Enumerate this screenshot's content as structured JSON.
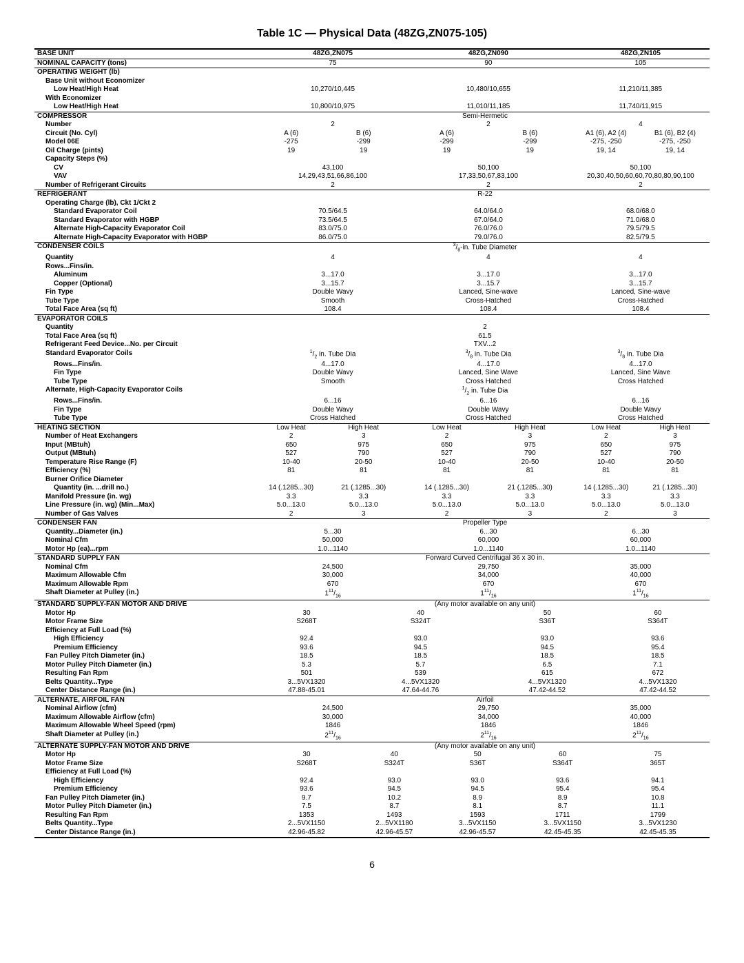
{
  "title": "Table 1C — Physical Data (48ZG,ZN075-105)",
  "page_number": "6",
  "cols": {
    "c1": "48ZG,ZN075",
    "c2": "48ZG,ZN090",
    "c3": "48ZG,ZN105"
  },
  "base_unit": {
    "label": "BASE UNIT",
    "nominal_capacity": {
      "label": "NOMINAL CAPACITY (tons)",
      "v": [
        "75",
        "90",
        "105"
      ]
    }
  },
  "operating_weight": {
    "label": "OPERATING WEIGHT (lb)",
    "base_no_econ": "Base Unit without Economizer",
    "low_high1": {
      "label": "Low Heat/High Heat",
      "v": [
        "10,270/10,445",
        "10,480/10,655",
        "11,210/11,385"
      ]
    },
    "with_econ": "With Economizer",
    "low_high2": {
      "label": "Low Heat/High Heat",
      "v": [
        "10,800/10,975",
        "11,010/11,185",
        "11,740/11,915"
      ]
    }
  },
  "compressor": {
    "label": "COMPRESSOR",
    "type": "Semi-Hermetic",
    "number": {
      "label": "Number",
      "v": [
        "2",
        "2",
        "4"
      ]
    },
    "circuit": {
      "label": "Circuit (No. Cyl)",
      "a": [
        "A (6)",
        "A (6)",
        "A1 (6), A2 (4)"
      ],
      "b": [
        "B (6)",
        "B (6)",
        "B1 (6), B2 (4)"
      ]
    },
    "model": {
      "label": "Model 06E",
      "a": [
        "-275",
        "-299",
        "-275, -250"
      ],
      "b": [
        "-299",
        "-299",
        "-275, -250"
      ]
    },
    "oil": {
      "label": "Oil Charge (pints)",
      "a": [
        "19",
        "19",
        "19, 14"
      ],
      "b": [
        "19",
        "19",
        "19, 14"
      ]
    },
    "cap_steps": "Capacity Steps (%)",
    "cv": {
      "label": "CV",
      "v": [
        "43,100",
        "50,100",
        "50,100"
      ]
    },
    "vav": {
      "label": "VAV",
      "v": [
        "14,29,43,51,66,86,100",
        "17,33,50,67,83,100",
        "20,30,40,50,60,60,70,80,80,90,100"
      ]
    },
    "circuits": {
      "label": "Number of Refrigerant Circuits",
      "v": [
        "2",
        "2",
        "2"
      ]
    }
  },
  "refrigerant": {
    "label": "REFRIGERANT",
    "type": "R-22",
    "op_charge": "Operating Charge (lb), Ckt 1/Ckt 2",
    "std_evap": {
      "label": "Standard Evaporator Coil",
      "v": [
        "70.5/64.5",
        "64.0/64.0",
        "68.0/68.0"
      ]
    },
    "std_evap_hgbp": {
      "label": "Standard Evaporator with HGBP",
      "v": [
        "73.5/64.5",
        "67.0/64.0",
        "71.0/68.0"
      ]
    },
    "alt_evap": {
      "label": "Alternate High-Capacity Evaporator Coil",
      "v": [
        "83.0/75.0",
        "76.0/76.0",
        "79.5/79.5"
      ]
    },
    "alt_evap_hgbp": {
      "label": "Alternate High-Capacity Evaporator with HGBP",
      "v": [
        "86.0/75.0",
        "79.0/76.0",
        "82.5/79.5"
      ]
    }
  },
  "condenser": {
    "label": "CONDENSER COILS",
    "type": "3/8-in. Tube Diameter",
    "quantity": {
      "label": "Quantity",
      "v": [
        "4",
        "4",
        "4"
      ]
    },
    "rows_fins": "Rows...Fins/in.",
    "aluminum": {
      "label": "Aluminum",
      "v": [
        "3...17.0",
        "3...17.0",
        "3...17.0"
      ]
    },
    "copper": {
      "label": "Copper (Optional)",
      "v": [
        "3...15.7",
        "3...15.7",
        "3...15.7"
      ]
    },
    "fin_type": {
      "label": "Fin Type",
      "v": [
        "Double Wavy",
        "Lanced, Sine-wave",
        "Lanced, Sine-wave"
      ]
    },
    "tube_type": {
      "label": "Tube Type",
      "v": [
        "Smooth",
        "Cross-Hatched",
        "Cross-Hatched"
      ]
    },
    "face_area": {
      "label": "Total Face Area (sq ft)",
      "v": [
        "108.4",
        "108.4",
        "108.4"
      ]
    }
  },
  "evaporator": {
    "label": "EVAPORATOR COILS",
    "quantity": {
      "label": "Quantity",
      "v": "2"
    },
    "face_area": {
      "label": "Total Face Area (sq ft)",
      "v": "61.5"
    },
    "feed": {
      "label": "Refrigerant Feed Device...No. per Circuit",
      "v": "TXV...2"
    },
    "std_coils": {
      "label": "Standard Evaporator Coils",
      "v": [
        "1/2 in. Tube Dia",
        "3/8 in. Tube Dia",
        "3/8 in. Tube Dia"
      ]
    },
    "rows_fins1": {
      "label": "Rows...Fins/in.",
      "v": [
        "4...17.0",
        "4...17.0",
        "4...17.0"
      ]
    },
    "fin_type1": {
      "label": "Fin Type",
      "v": [
        "Double Wavy",
        "Lanced, Sine Wave",
        "Lanced, Sine Wave"
      ]
    },
    "tube_type1": {
      "label": "Tube Type",
      "v": [
        "Smooth",
        "Cross Hatched",
        "Cross Hatched"
      ]
    },
    "alt_coils": {
      "label": "Alternate, High-Capacity Evaporator Coils",
      "v": "1/2 in. Tube Dia"
    },
    "rows_fins2": {
      "label": "Rows...Fins/in.",
      "v": [
        "6...16",
        "6...16",
        "6...16"
      ]
    },
    "fin_type2": {
      "label": "Fin Type",
      "v": [
        "Double Wavy",
        "Double Wavy",
        "Double Wavy"
      ]
    },
    "tube_type2": {
      "label": "Tube Type",
      "v": [
        "Cross Hatched",
        "Cross Hatched",
        "Cross Hatched"
      ]
    }
  },
  "heating": {
    "label": "HEATING SECTION",
    "low": "Low Heat",
    "high": "High Heat",
    "exchangers": {
      "label": "Number of Heat Exchangers",
      "l": [
        "2",
        "2",
        "2"
      ],
      "h": [
        "3",
        "3",
        "3"
      ]
    },
    "input": {
      "label": "Input (MBtuh)",
      "l": [
        "650",
        "650",
        "650"
      ],
      "h": [
        "975",
        "975",
        "975"
      ]
    },
    "output": {
      "label": "Output (MBtuh)",
      "l": [
        "527",
        "527",
        "527"
      ],
      "h": [
        "790",
        "790",
        "790"
      ]
    },
    "temp_rise": {
      "label": "Temperature Rise Range (F)",
      "l": [
        "10-40",
        "10-40",
        "10-40"
      ],
      "h": [
        "20-50",
        "20-50",
        "20-50"
      ]
    },
    "efficiency": {
      "label": "Efficiency (%)",
      "l": [
        "81",
        "81",
        "81"
      ],
      "h": [
        "81",
        "81",
        "81"
      ]
    },
    "burner": "Burner Orifice Diameter",
    "burner_qty": {
      "label": "Quantity (in. ...drill no.)",
      "l": [
        "14 (.1285...30)",
        "14 (.1285...30)",
        "14 (.1285...30)"
      ],
      "h": [
        "21 (.1285...30)",
        "21 (.1285...30)",
        "21 (.1285...30)"
      ]
    },
    "manifold": {
      "label": "Manifold Pressure (in. wg)",
      "l": [
        "3.3",
        "3.3",
        "3.3"
      ],
      "h": [
        "3.3",
        "3.3",
        "3.3"
      ]
    },
    "line_pressure": {
      "label": "Line Pressure (in. wg)   (Min...Max)",
      "l": [
        "5.0...13.0",
        "5.0...13.0",
        "5.0...13.0"
      ],
      "h": [
        "5.0...13.0",
        "5.0...13.0",
        "5.0...13.0"
      ]
    },
    "gas_valves": {
      "label": "Number of Gas Valves",
      "l": [
        "2",
        "2",
        "2"
      ],
      "h": [
        "3",
        "3",
        "3"
      ]
    }
  },
  "condenser_fan": {
    "label": "CONDENSER FAN",
    "type": "Propeller Type",
    "qty_dia": {
      "label": "Quantity...Diameter (in.)",
      "v": [
        "5...30",
        "6...30",
        "6...30"
      ]
    },
    "cfm": {
      "label": "Nominal Cfm",
      "v": [
        "50,000",
        "60,000",
        "60,000"
      ]
    },
    "hp_rpm": {
      "label": "Motor Hp (ea)...rpm",
      "v": [
        "1.0...1140",
        "1.0...1140",
        "1.0...1140"
      ]
    }
  },
  "std_supply_fan": {
    "label": "STANDARD SUPPLY FAN",
    "type": "Forward Curved Centrifugal 36 x 30 in.",
    "cfm": {
      "label": "Nominal Cfm",
      "v": [
        "24,500",
        "29,750",
        "35,000"
      ]
    },
    "max_cfm": {
      "label": "Maximum Allowable Cfm",
      "v": [
        "30,000",
        "34,000",
        "40,000"
      ]
    },
    "max_rpm": {
      "label": "Maximum Allowable Rpm",
      "v": [
        "670",
        "670",
        "670"
      ]
    },
    "shaft": {
      "label": "Shaft Diameter at Pulley (in.)",
      "v": [
        "1 11/16",
        "1 11/16",
        "1 11/16"
      ]
    }
  },
  "std_motor": {
    "label": "STANDARD SUPPLY-FAN MOTOR AND DRIVE",
    "note": "(Any motor available on any unit)",
    "hp": {
      "label": "Motor Hp",
      "v": [
        "30",
        "40",
        "50",
        "60"
      ]
    },
    "frame": {
      "label": "Motor Frame Size",
      "v": [
        "S268T",
        "S324T",
        "S36T",
        "S364T"
      ]
    },
    "eff_label": "Efficiency at Full Load (%)",
    "high_eff": {
      "label": "High Efficiency",
      "v": [
        "92.4",
        "93.0",
        "93.0",
        "93.6"
      ]
    },
    "prem_eff": {
      "label": "Premium Efficiency",
      "v": [
        "93.6",
        "94.5",
        "94.5",
        "95.4"
      ]
    },
    "fan_pulley": {
      "label": "Fan Pulley Pitch Diameter (in.)",
      "v": [
        "18.5",
        "18.5",
        "18.5",
        "18.5"
      ]
    },
    "motor_pulley": {
      "label": "Motor Pulley Pitch Diameter (in.)",
      "v": [
        "5.3",
        "5.7",
        "6.5",
        "7.1"
      ]
    },
    "result_rpm": {
      "label": "Resulting Fan Rpm",
      "v": [
        "501",
        "539",
        "615",
        "672"
      ]
    },
    "belts": {
      "label": "Belts   Quantity...Type",
      "v": [
        "3...5VX1320",
        "4...5VX1320",
        "4...5VX1320",
        "4...5VX1320"
      ]
    },
    "center_dist": {
      "label": "Center Distance Range (in.)",
      "v": [
        "47.88-45.01",
        "47.64-44.76",
        "47.42-44.52",
        "47.42-44.52"
      ]
    }
  },
  "alt_fan": {
    "label": "ALTERNATE, AIRFOIL FAN",
    "type": "Airfoil",
    "cfm": {
      "label": "Nominal Airflow (cfm)",
      "v": [
        "24,500",
        "29,750",
        "35,000"
      ]
    },
    "max_cfm": {
      "label": "Maximum Allowable Airflow (cfm)",
      "v": [
        "30,000",
        "34,000",
        "40,000"
      ]
    },
    "max_rpm": {
      "label": "Maximum Allowable Wheel Speed (rpm)",
      "v": [
        "1846",
        "1846",
        "1846"
      ]
    },
    "shaft": {
      "label": "Shaft Diameter at Pulley (in.)",
      "v": [
        "2 11/16",
        "2 11/16",
        "2 11/16"
      ]
    }
  },
  "alt_motor": {
    "label": "ALTERNATE SUPPLY-FAN MOTOR AND DRIVE",
    "note": "(Any motor available on any unit)",
    "hp": {
      "label": "Motor Hp",
      "v": [
        "30",
        "40",
        "50",
        "60",
        "75"
      ]
    },
    "frame": {
      "label": "Motor Frame Size",
      "v": [
        "S268T",
        "S324T",
        "S36T",
        "S364T",
        "365T"
      ]
    },
    "eff_label": "Efficiency at Full Load (%)",
    "high_eff": {
      "label": "High Efficiency",
      "v": [
        "92.4",
        "93.0",
        "93.0",
        "93.6",
        "94.1"
      ]
    },
    "prem_eff": {
      "label": "Premium Efficiency",
      "v": [
        "93.6",
        "94.5",
        "94.5",
        "95.4",
        "95.4"
      ]
    },
    "fan_pulley": {
      "label": "Fan Pulley Pitch Diameter (in.)",
      "v": [
        "9.7",
        "10.2",
        "8.9",
        "8.9",
        "10.8"
      ]
    },
    "motor_pulley": {
      "label": "Motor Pulley Pitch Diameter (in.)",
      "v": [
        "7.5",
        "8.7",
        "8.1",
        "8.7",
        "11.1"
      ]
    },
    "result_rpm": {
      "label": "Resulting Fan Rpm",
      "v": [
        "1353",
        "1493",
        "1593",
        "1711",
        "1799"
      ]
    },
    "belts": {
      "label": "Belts   Quantity...Type",
      "v": [
        "2...5VX1150",
        "2...5VX1180",
        "3...5VX1150",
        "3...5VX1150",
        "3...5VX1230"
      ]
    },
    "center_dist": {
      "label": "Center Distance Range (in.)",
      "v": [
        "42.96-45.82",
        "42.96-45.57",
        "42.96-45.57",
        "42.45-45.35",
        "42.45-45.35"
      ]
    }
  }
}
